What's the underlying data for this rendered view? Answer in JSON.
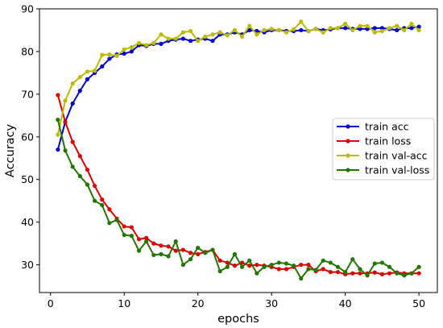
{
  "chart_data": {
    "type": "line",
    "title": "",
    "xlabel": "epochs",
    "ylabel": "Accuracy",
    "xlim": [
      -1.5,
      52.5
    ],
    "ylim": [
      23.5,
      90
    ],
    "xticks": [
      0,
      10,
      20,
      30,
      40,
      50
    ],
    "yticks": [
      30,
      40,
      50,
      60,
      70,
      80,
      90
    ],
    "grid": false,
    "legend_position": "center-right",
    "x": [
      1,
      2,
      3,
      4,
      5,
      6,
      7,
      8,
      9,
      10,
      11,
      12,
      13,
      14,
      15,
      16,
      17,
      18,
      19,
      20,
      21,
      22,
      23,
      24,
      25,
      26,
      27,
      28,
      29,
      30,
      31,
      32,
      33,
      34,
      35,
      36,
      37,
      38,
      39,
      40,
      41,
      42,
      43,
      44,
      45,
      46,
      47,
      48,
      49,
      50
    ],
    "series": [
      {
        "name": "train acc",
        "color": "#0000cc",
        "values": [
          57,
          63.5,
          67.8,
          70.8,
          73.5,
          75.0,
          76.5,
          78.3,
          79.3,
          79.5,
          80.0,
          81.5,
          81.3,
          81.8,
          81.8,
          82.5,
          82.8,
          83.0,
          82.5,
          82.8,
          83.0,
          82.5,
          84.0,
          84.0,
          84.5,
          84.0,
          85.0,
          84.8,
          84.5,
          85.0,
          85.0,
          84.8,
          84.8,
          85.0,
          84.8,
          85.3,
          85.0,
          85.2,
          85.5,
          85.5,
          85.3,
          85.3,
          85.3,
          85.5,
          85.5,
          85.3,
          85.0,
          85.5,
          85.5,
          85.8
        ]
      },
      {
        "name": "train loss",
        "color": "#dd0000",
        "values": [
          69.8,
          63.5,
          58.8,
          55.5,
          52.3,
          48.5,
          45.3,
          43.0,
          40.8,
          39.0,
          38.8,
          36.0,
          36.3,
          35.0,
          34.5,
          34.3,
          33.3,
          33.5,
          32.8,
          32.5,
          33.0,
          33.5,
          31.0,
          30.5,
          29.8,
          30.5,
          29.8,
          30.0,
          29.8,
          29.5,
          29.0,
          29.0,
          29.5,
          30.0,
          30.0,
          28.5,
          29.0,
          28.3,
          28.3,
          27.8,
          28.0,
          28.0,
          28.0,
          28.2,
          27.8,
          28.0,
          28.2,
          28.0,
          28.0,
          28.0
        ]
      },
      {
        "name": "train val-acc",
        "color": "#bbbb00",
        "values": [
          60.5,
          68.5,
          72.5,
          74.0,
          75.3,
          75.5,
          79.2,
          79.3,
          79.0,
          80.5,
          81.0,
          82.0,
          81.5,
          82.0,
          84.0,
          83.0,
          83.0,
          84.5,
          84.8,
          82.5,
          83.5,
          84.0,
          84.5,
          83.8,
          85.0,
          83.5,
          86.0,
          84.0,
          85.0,
          85.3,
          85.0,
          84.5,
          85.2,
          87.0,
          84.8,
          85.3,
          84.5,
          85.5,
          85.5,
          86.5,
          85.0,
          86.0,
          86.0,
          84.5,
          84.8,
          85.5,
          86.0,
          85.0,
          86.5,
          85.0
        ]
      },
      {
        "name": "train val-loss",
        "color": "#227700",
        "values": [
          64.0,
          56.8,
          53.0,
          50.8,
          48.8,
          45.0,
          44.0,
          39.8,
          40.5,
          37.0,
          36.8,
          33.3,
          35.5,
          32.3,
          32.5,
          32.0,
          35.5,
          30.0,
          31.3,
          34.0,
          32.8,
          33.5,
          28.5,
          29.5,
          32.5,
          29.5,
          31.0,
          28.0,
          29.5,
          30.0,
          30.5,
          30.3,
          29.8,
          26.8,
          29.0,
          28.8,
          31.0,
          30.5,
          29.5,
          28.3,
          31.3,
          29.0,
          27.5,
          30.3,
          30.5,
          29.5,
          28.0,
          27.5,
          28.0,
          29.5
        ]
      }
    ]
  }
}
